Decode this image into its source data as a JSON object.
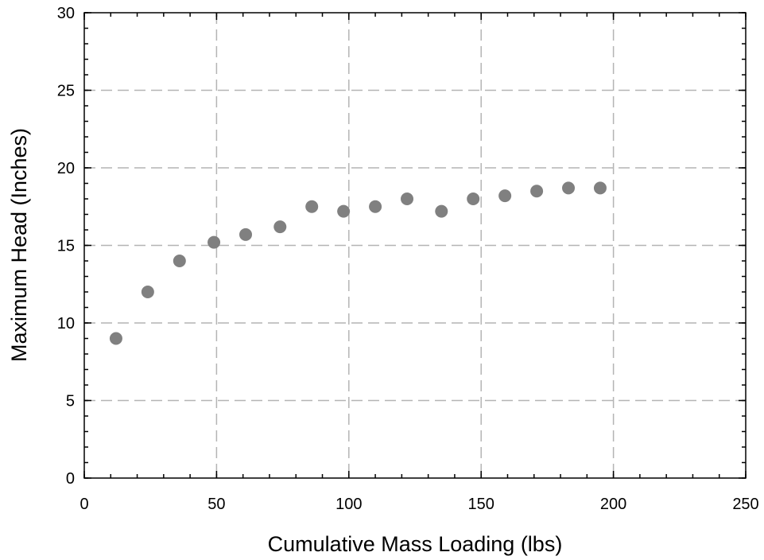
{
  "chart_data": {
    "type": "scatter",
    "title": "",
    "xlabel": "Cumulative Mass Loading (lbs)",
    "ylabel": "Maximum Head (Inches)",
    "xlim": [
      0,
      250
    ],
    "ylim": [
      0,
      30
    ],
    "x_ticks": [
      "0",
      "50",
      "100",
      "150",
      "200",
      "250"
    ],
    "y_ticks": [
      "0",
      "5",
      "10",
      "15",
      "20",
      "25",
      "30"
    ],
    "grid": true,
    "marker_color": "#808080",
    "grid_color": "#b4b4b4",
    "series": [
      {
        "x": [
          12,
          24,
          36,
          49,
          61,
          74,
          86,
          98,
          110,
          122,
          135,
          147,
          159,
          171,
          183,
          195
        ],
        "y": [
          9.0,
          12.0,
          14.0,
          15.2,
          15.7,
          16.2,
          17.5,
          17.2,
          17.5,
          18.0,
          17.2,
          18.0,
          18.2,
          18.5,
          18.7,
          18.7
        ]
      }
    ]
  }
}
